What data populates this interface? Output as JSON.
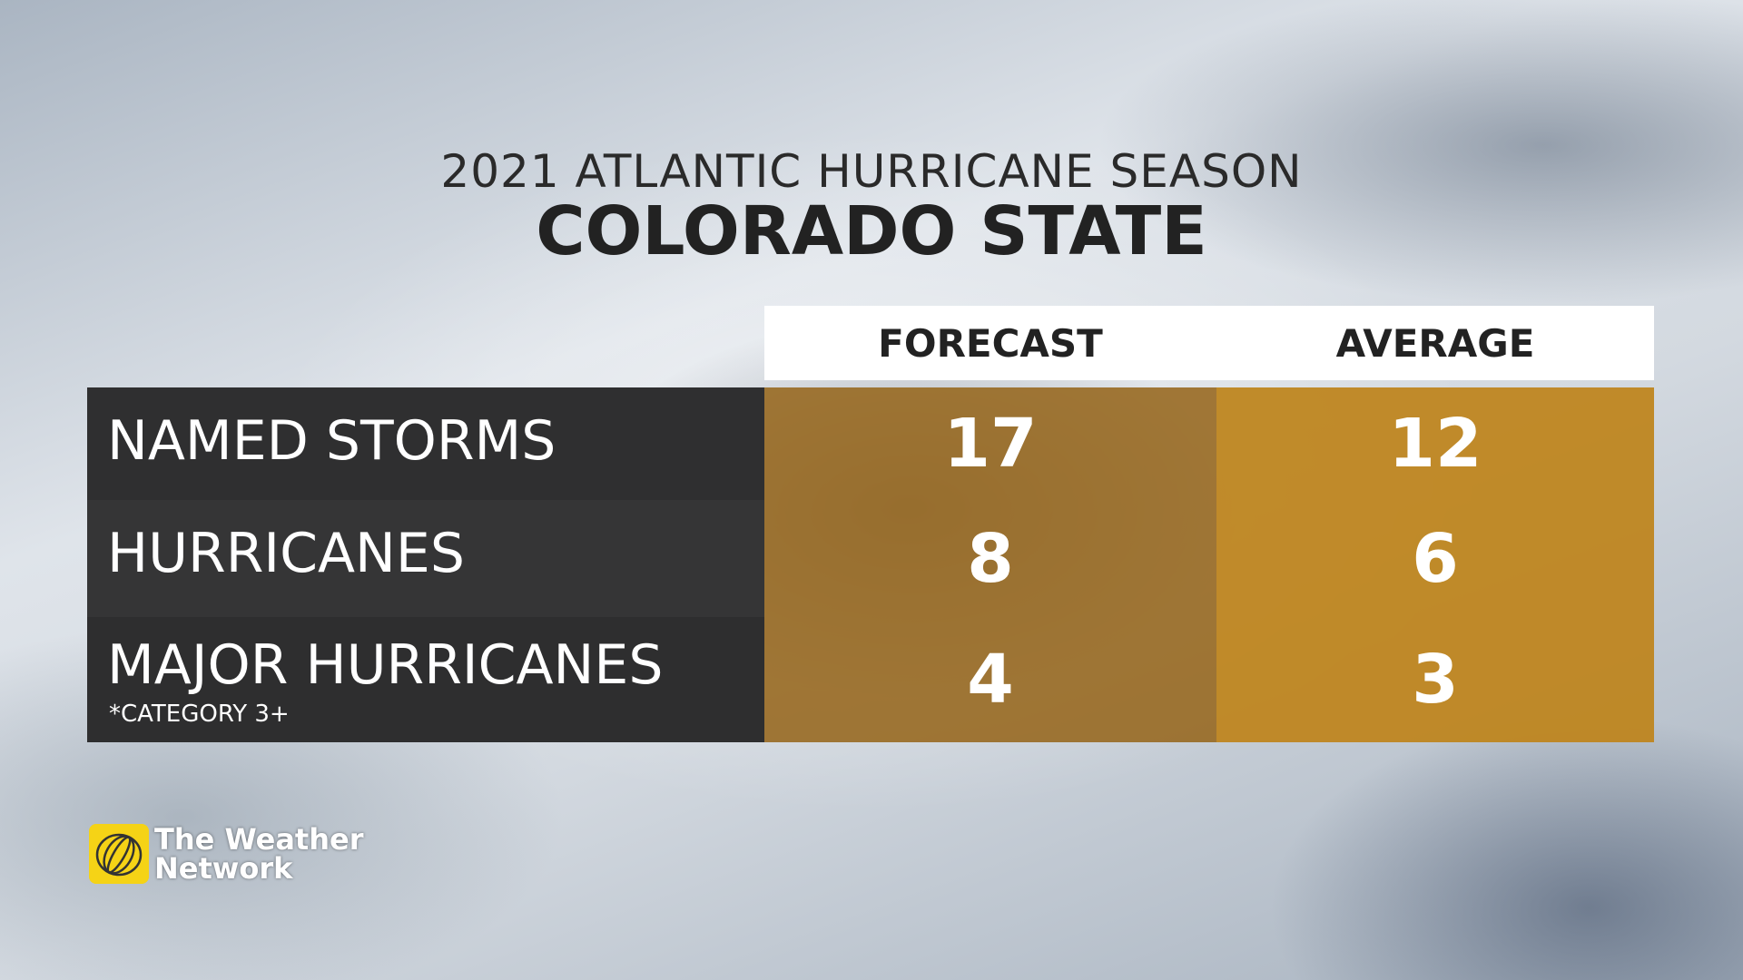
{
  "header": {
    "title": "2021 ATLANTIC HURRICANE SEASON",
    "subtitle": "COLORADO STATE"
  },
  "table": {
    "columns": [
      "FORECAST",
      "AVERAGE"
    ],
    "rows": [
      {
        "label": "NAMED STORMS",
        "forecast": 17,
        "average": 12
      },
      {
        "label": "HURRICANES",
        "forecast": 8,
        "average": 6
      },
      {
        "label": "MAJOR HURRICANES",
        "note": "*CATEGORY 3+",
        "forecast": 4,
        "average": 3
      }
    ]
  },
  "logo": {
    "lines": [
      "The Weather",
      "Network"
    ]
  }
}
